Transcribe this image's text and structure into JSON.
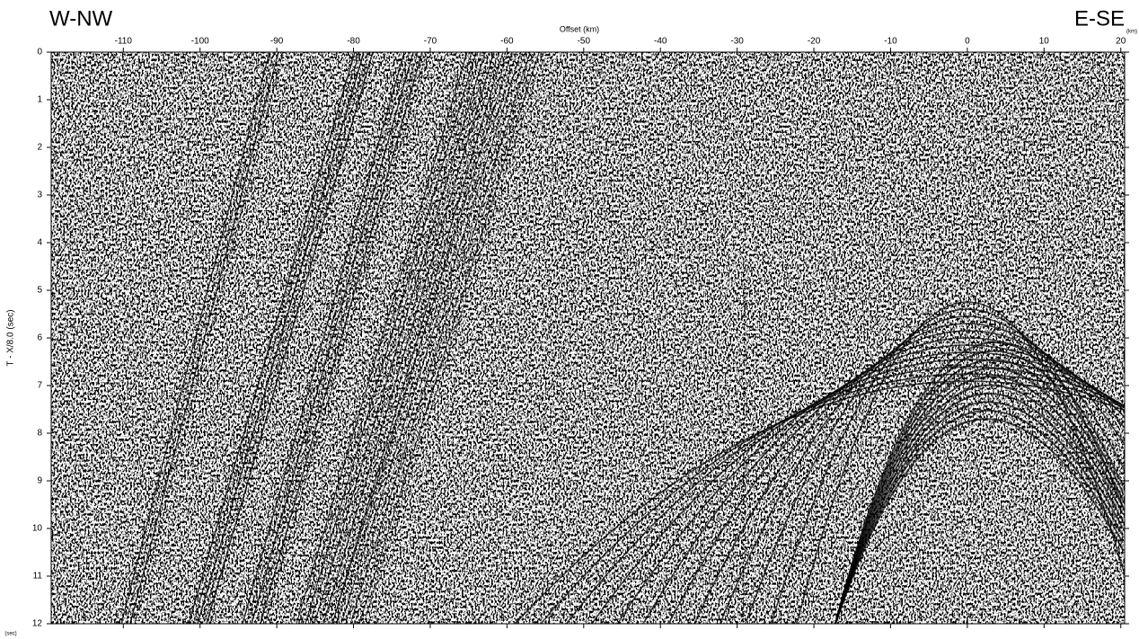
{
  "chart_data": {
    "type": "seismic",
    "left_label": "W-NW",
    "right_label": "E-SE",
    "xlabel": "Offset (km)",
    "xunit": "(km)",
    "ylabel": "T - X/8.0 (sec)",
    "yunit": "(sec)",
    "xlim": [
      -119.4,
      20.5
    ],
    "xticks": [
      -110,
      -100,
      -90,
      -80,
      -70,
      -60,
      -50,
      -40,
      -30,
      -20,
      -10,
      0,
      10,
      20
    ],
    "ylim": [
      0,
      12
    ],
    "yticks": [
      0,
      1,
      2,
      3,
      4,
      5,
      6,
      7,
      8,
      9,
      10,
      11,
      12
    ],
    "y_inverted": true,
    "x_axis_position": "top"
  }
}
